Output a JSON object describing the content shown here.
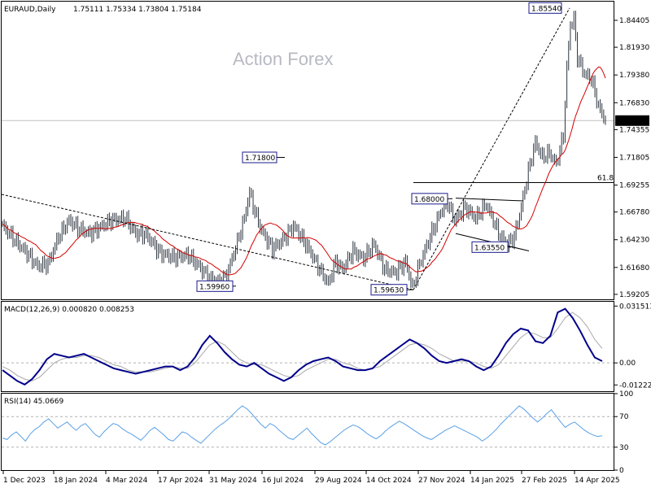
{
  "header": {
    "symbol": "EURAUD,Daily",
    "ohlc": "1.75111 1.75334 1.73804 1.75184"
  },
  "watermark": "Action Forex",
  "colors": {
    "candle": "#2d3540",
    "ma": "#d40000",
    "macd": "#00008b",
    "signal": "#a8a8a8",
    "rsi": "#5aa0e6",
    "label_border": "#1a1a8c"
  },
  "chart_data": [
    {
      "type": "candlestick",
      "title": "EURAUD,Daily",
      "y_ticks": [
        "1.84405",
        "1.81930",
        "1.79380",
        "1.76830",
        "1.74355",
        "1.71805",
        "1.69255",
        "1.66780",
        "1.64230",
        "1.61680",
        "1.59205"
      ],
      "ylim": [
        1.5875,
        1.8605
      ],
      "last_price": "1.75184",
      "fib_label": "61.8",
      "fib_level": 1.6948,
      "annotations": [
        {
          "text": "1.85540",
          "value": 1.8554
        },
        {
          "text": "1.71800",
          "value": 1.718
        },
        {
          "text": "1.68000",
          "value": 1.68
        },
        {
          "text": "1.63550",
          "value": 1.6355
        },
        {
          "text": "1.59960",
          "value": 1.5996
        },
        {
          "text": "1.59630",
          "value": 1.5963
        }
      ],
      "anchors": [
        {
          "i": 0,
          "v": 1.655
        },
        {
          "i": 8,
          "v": 1.64
        },
        {
          "i": 14,
          "v": 1.63
        },
        {
          "i": 20,
          "v": 1.618
        },
        {
          "i": 26,
          "v": 1.62
        },
        {
          "i": 32,
          "v": 1.645
        },
        {
          "i": 38,
          "v": 1.66
        },
        {
          "i": 44,
          "v": 1.652
        },
        {
          "i": 50,
          "v": 1.648
        },
        {
          "i": 56,
          "v": 1.654
        },
        {
          "i": 62,
          "v": 1.66
        },
        {
          "i": 70,
          "v": 1.662
        },
        {
          "i": 76,
          "v": 1.648
        },
        {
          "i": 82,
          "v": 1.647
        },
        {
          "i": 90,
          "v": 1.63
        },
        {
          "i": 98,
          "v": 1.626
        },
        {
          "i": 106,
          "v": 1.628
        },
        {
          "i": 112,
          "v": 1.618
        },
        {
          "i": 118,
          "v": 1.607
        },
        {
          "i": 124,
          "v": 1.603
        },
        {
          "i": 128,
          "v": 1.61
        },
        {
          "i": 134,
          "v": 1.64
        },
        {
          "i": 138,
          "v": 1.662
        },
        {
          "i": 141,
          "v": 1.686
        },
        {
          "i": 144,
          "v": 1.668
        },
        {
          "i": 148,
          "v": 1.65
        },
        {
          "i": 154,
          "v": 1.634
        },
        {
          "i": 160,
          "v": 1.642
        },
        {
          "i": 166,
          "v": 1.655
        },
        {
          "i": 170,
          "v": 1.646
        },
        {
          "i": 176,
          "v": 1.63
        },
        {
          "i": 182,
          "v": 1.612
        },
        {
          "i": 186,
          "v": 1.602
        },
        {
          "i": 190,
          "v": 1.622
        },
        {
          "i": 194,
          "v": 1.615
        },
        {
          "i": 200,
          "v": 1.632
        },
        {
          "i": 206,
          "v": 1.625
        },
        {
          "i": 212,
          "v": 1.638
        },
        {
          "i": 218,
          "v": 1.615
        },
        {
          "i": 224,
          "v": 1.612
        },
        {
          "i": 230,
          "v": 1.622
        },
        {
          "i": 234,
          "v": 1.598
        },
        {
          "i": 238,
          "v": 1.62
        },
        {
          "i": 244,
          "v": 1.645
        },
        {
          "i": 250,
          "v": 1.668
        },
        {
          "i": 254,
          "v": 1.676
        },
        {
          "i": 258,
          "v": 1.66
        },
        {
          "i": 264,
          "v": 1.672
        },
        {
          "i": 270,
          "v": 1.662
        },
        {
          "i": 276,
          "v": 1.675
        },
        {
          "i": 280,
          "v": 1.66
        },
        {
          "i": 284,
          "v": 1.645
        },
        {
          "i": 288,
          "v": 1.638
        },
        {
          "i": 292,
          "v": 1.645
        },
        {
          "i": 296,
          "v": 1.672
        },
        {
          "i": 300,
          "v": 1.705
        },
        {
          "i": 304,
          "v": 1.732
        },
        {
          "i": 308,
          "v": 1.718
        },
        {
          "i": 312,
          "v": 1.722
        },
        {
          "i": 316,
          "v": 1.712
        },
        {
          "i": 320,
          "v": 1.738
        },
        {
          "i": 322,
          "v": 1.8
        },
        {
          "i": 324,
          "v": 1.84
        },
        {
          "i": 326,
          "v": 1.845
        },
        {
          "i": 328,
          "v": 1.81
        },
        {
          "i": 332,
          "v": 1.795
        },
        {
          "i": 336,
          "v": 1.79
        },
        {
          "i": 340,
          "v": 1.765
        },
        {
          "i": 344,
          "v": 1.752
        }
      ]
    },
    {
      "type": "line",
      "title": "MACD(12,26,9) 0.000820 0.008253",
      "y_ticks": [
        "0.031513",
        "0.00",
        "-0.012223"
      ],
      "ylim": [
        -0.0157,
        0.0339
      ],
      "series": [
        {
          "values": [
            -0.004,
            -0.007,
            -0.01,
            -0.012,
            -0.009,
            -0.004,
            0.002,
            0.005,
            0.004,
            0.003,
            0.004,
            0.005,
            0.003,
            0.001,
            -0.001,
            -0.003,
            -0.004,
            -0.005,
            -0.006,
            -0.005,
            -0.004,
            -0.003,
            -0.002,
            -0.002,
            -0.004,
            -0.002,
            0.003,
            0.01,
            0.015,
            0.011,
            0.006,
            0.002,
            -0.001,
            -0.002,
            0.0,
            -0.003,
            -0.006,
            -0.008,
            -0.01,
            -0.008,
            -0.004,
            -0.001,
            0.001,
            0.002,
            0.003,
            0.001,
            -0.002,
            -0.003,
            -0.004,
            -0.004,
            -0.003,
            0.001,
            0.004,
            0.007,
            0.01,
            0.013,
            0.011,
            0.008,
            0.004,
            0.001,
            0.0,
            0.001,
            0.002,
            0.001,
            -0.002,
            -0.004,
            -0.002,
            0.004,
            0.011,
            0.016,
            0.019,
            0.018,
            0.012,
            0.011,
            0.015,
            0.028,
            0.03,
            0.025,
            0.018,
            0.01,
            0.003,
            0.001
          ]
        },
        {
          "values": [
            -0.002,
            -0.004,
            -0.007,
            -0.009,
            -0.01,
            -0.008,
            -0.004,
            0.0,
            0.002,
            0.003,
            0.003,
            0.004,
            0.004,
            0.003,
            0.001,
            -0.001,
            -0.002,
            -0.004,
            -0.005,
            -0.005,
            -0.005,
            -0.004,
            -0.003,
            -0.002,
            -0.003,
            -0.003,
            0.0,
            0.005,
            0.01,
            0.012,
            0.01,
            0.006,
            0.002,
            0.0,
            -0.001,
            -0.001,
            -0.003,
            -0.005,
            -0.007,
            -0.008,
            -0.007,
            -0.004,
            -0.002,
            0.0,
            0.002,
            0.002,
            0.0,
            -0.001,
            -0.003,
            -0.004,
            -0.003,
            -0.002,
            0.001,
            0.004,
            0.007,
            0.01,
            0.011,
            0.01,
            0.008,
            0.005,
            0.003,
            0.001,
            0.001,
            0.001,
            0.0,
            -0.002,
            -0.003,
            -0.001,
            0.004,
            0.009,
            0.014,
            0.017,
            0.016,
            0.014,
            0.014,
            0.019,
            0.025,
            0.028,
            0.025,
            0.02,
            0.013,
            0.008
          ]
        }
      ]
    },
    {
      "type": "line",
      "title": "RSI(14) 45.0669",
      "y_ticks": [
        "100",
        "70",
        "30",
        "0"
      ],
      "ylim": [
        0,
        100
      ],
      "series": [
        {
          "values": [
            42,
            40,
            46,
            50,
            44,
            38,
            47,
            53,
            57,
            63,
            67,
            61,
            55,
            59,
            63,
            57,
            52,
            58,
            61,
            54,
            47,
            43,
            50,
            56,
            61,
            59,
            54,
            50,
            47,
            43,
            39,
            45,
            52,
            56,
            51,
            46,
            40,
            38,
            44,
            50,
            48,
            43,
            39,
            35,
            41,
            47,
            53,
            58,
            62,
            67,
            73,
            79,
            84,
            80,
            74,
            67,
            60,
            55,
            61,
            58,
            52,
            47,
            42,
            40,
            45,
            50,
            55,
            48,
            42,
            36,
            33,
            37,
            42,
            47,
            52,
            56,
            59,
            57,
            53,
            48,
            44,
            41,
            45,
            51,
            56,
            60,
            64,
            61,
            57,
            53,
            49,
            45,
            42,
            40,
            44,
            48,
            52,
            55,
            58,
            55,
            52,
            49,
            46,
            43,
            38,
            42,
            47,
            53,
            60,
            66,
            72,
            78,
            84,
            80,
            74,
            68,
            63,
            68,
            74,
            79,
            71,
            63,
            56,
            60,
            63,
            58,
            53,
            49,
            46,
            44,
            45
          ]
        }
      ]
    }
  ],
  "x_axis": [
    "1 Dec 2023",
    "18 Jan 2024",
    "4 Mar 2024",
    "17 Apr 2024",
    "31 May 2024",
    "16 Jul 2024",
    "29 Aug 2024",
    "14 Oct 2024",
    "27 Nov 2024",
    "14 Jan 2025",
    "27 Feb 2025",
    "14 Apr 2025"
  ]
}
